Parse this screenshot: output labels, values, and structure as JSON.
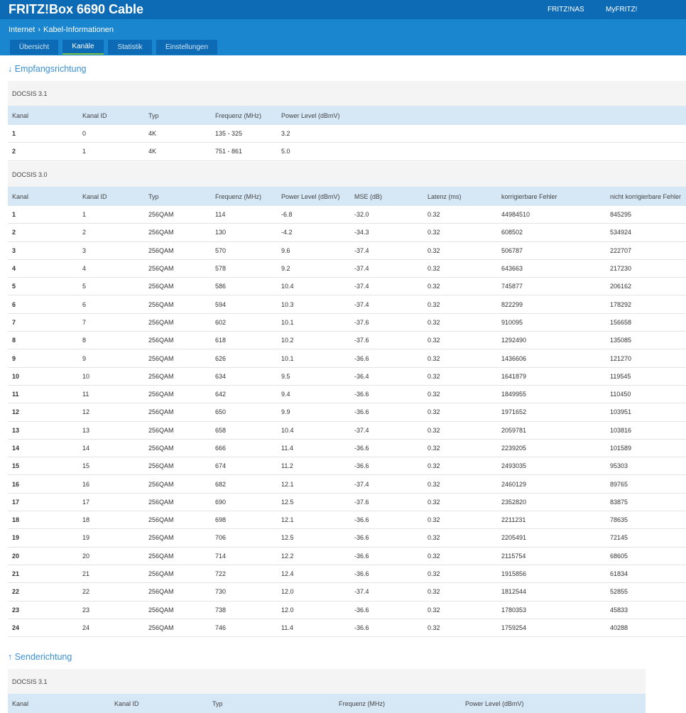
{
  "header": {
    "title": "FRITZ!Box 6690 Cable",
    "links": [
      "FRITZ!NAS",
      "MyFRITZ!"
    ]
  },
  "breadcrumb": [
    "Internet",
    "Kabel-Informationen"
  ],
  "tabs": [
    "Übersicht",
    "Kanäle",
    "Statistik",
    "Einstellungen"
  ],
  "downstream": {
    "title": "↓ Empfangsrichtung",
    "docsis31": {
      "label": "DOCSIS 3.1",
      "columns": [
        "Kanal",
        "Kanal ID",
        "Typ",
        "Frequenz (MHz)",
        "Power Level (dBmV)"
      ],
      "rows": [
        [
          "1",
          "0",
          "4K",
          "135 - 325",
          "3.2"
        ],
        [
          "2",
          "1",
          "4K",
          "751 - 861",
          "5.0"
        ]
      ]
    },
    "docsis30": {
      "label": "DOCSIS 3.0",
      "columns": [
        "Kanal",
        "Kanal ID",
        "Typ",
        "Frequenz (MHz)",
        "Power Level (dBmV)",
        "MSE (dB)",
        "Latenz (ms)",
        "korrigierbare Fehler",
        "nicht korrigierbare Fehler"
      ],
      "rows": [
        [
          "1",
          "1",
          "256QAM",
          "114",
          "-6.8",
          "-32.0",
          "0.32",
          "44984510",
          "845295"
        ],
        [
          "2",
          "2",
          "256QAM",
          "130",
          "-4.2",
          "-34.3",
          "0.32",
          "608502",
          "534924"
        ],
        [
          "3",
          "3",
          "256QAM",
          "570",
          "9.6",
          "-37.4",
          "0.32",
          "506787",
          "222707"
        ],
        [
          "4",
          "4",
          "256QAM",
          "578",
          "9.2",
          "-37.4",
          "0.32",
          "643663",
          "217230"
        ],
        [
          "5",
          "5",
          "256QAM",
          "586",
          "10.4",
          "-37.4",
          "0.32",
          "745877",
          "206162"
        ],
        [
          "6",
          "6",
          "256QAM",
          "594",
          "10.3",
          "-37.4",
          "0.32",
          "822299",
          "178292"
        ],
        [
          "7",
          "7",
          "256QAM",
          "602",
          "10.1",
          "-37.6",
          "0.32",
          "910095",
          "156658"
        ],
        [
          "8",
          "8",
          "256QAM",
          "618",
          "10.2",
          "-37.6",
          "0.32",
          "1292490",
          "135085"
        ],
        [
          "9",
          "9",
          "256QAM",
          "626",
          "10.1",
          "-36.6",
          "0.32",
          "1436606",
          "121270"
        ],
        [
          "10",
          "10",
          "256QAM",
          "634",
          "9.5",
          "-36.4",
          "0.32",
          "1641879",
          "119545"
        ],
        [
          "11",
          "11",
          "256QAM",
          "642",
          "9.4",
          "-36.6",
          "0.32",
          "1849955",
          "110450"
        ],
        [
          "12",
          "12",
          "256QAM",
          "650",
          "9.9",
          "-36.6",
          "0.32",
          "1971652",
          "103951"
        ],
        [
          "13",
          "13",
          "256QAM",
          "658",
          "10.4",
          "-37.4",
          "0.32",
          "2059781",
          "103816"
        ],
        [
          "14",
          "14",
          "256QAM",
          "666",
          "11.4",
          "-36.6",
          "0.32",
          "2239205",
          "101589"
        ],
        [
          "15",
          "15",
          "256QAM",
          "674",
          "11.2",
          "-36.6",
          "0.32",
          "2493035",
          "95303"
        ],
        [
          "16",
          "16",
          "256QAM",
          "682",
          "12.1",
          "-37.4",
          "0.32",
          "2460129",
          "89765"
        ],
        [
          "17",
          "17",
          "256QAM",
          "690",
          "12.5",
          "-37.6",
          "0.32",
          "2352820",
          "83875"
        ],
        [
          "18",
          "18",
          "256QAM",
          "698",
          "12.1",
          "-36.6",
          "0.32",
          "2211231",
          "78635"
        ],
        [
          "19",
          "19",
          "256QAM",
          "706",
          "12.5",
          "-36.6",
          "0.32",
          "2205491",
          "72145"
        ],
        [
          "20",
          "20",
          "256QAM",
          "714",
          "12.2",
          "-36.6",
          "0.32",
          "2115754",
          "68605"
        ],
        [
          "21",
          "21",
          "256QAM",
          "722",
          "12.4",
          "-36.6",
          "0.32",
          "1915856",
          "61834"
        ],
        [
          "22",
          "22",
          "256QAM",
          "730",
          "12.0",
          "-37.4",
          "0.32",
          "1812544",
          "52855"
        ],
        [
          "23",
          "23",
          "256QAM",
          "738",
          "12.0",
          "-36.6",
          "0.32",
          "1780353",
          "45833"
        ],
        [
          "24",
          "24",
          "256QAM",
          "746",
          "11.4",
          "-36.6",
          "0.32",
          "1759254",
          "40288"
        ]
      ]
    }
  },
  "upstream": {
    "title": "↑ Senderichtung",
    "docsis31": {
      "label": "DOCSIS 3.1",
      "columns": [
        "Kanal",
        "Kanal ID",
        "Typ",
        "Frequenz (MHz)",
        "Power Level (dBmV)"
      ],
      "rows": []
    }
  }
}
